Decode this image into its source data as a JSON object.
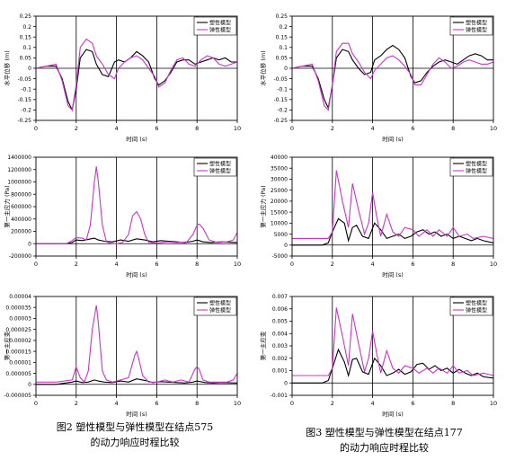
{
  "captions": [
    {
      "line1": "图2  塑性模型与弹性模型在结点575",
      "line2": "的动力响应时程比较"
    },
    {
      "line1": "图3  塑性模型与弹性模型在结点177",
      "line2": "的动力响应时程比较"
    }
  ],
  "colors": {
    "plastic": "#000000",
    "elastic": "#cc33cc"
  },
  "chart_data": [
    {
      "type": "line",
      "panel": "node-575-displacement",
      "xlabel": "时间 (s)",
      "ylabel": "水平位移 (m)",
      "xlim": [
        0,
        10
      ],
      "ylim": [
        -0.25,
        0.25
      ],
      "xticks": [
        "0",
        "2",
        "4",
        "6",
        "8",
        "10"
      ],
      "yticks": [
        "0.25",
        "0.2",
        "0.15",
        "0.1",
        "0.05",
        "0",
        "-0.05",
        "-0.1",
        "-0.15",
        "-0.2",
        "-0.25"
      ],
      "legend": "top-right",
      "grid": "vertical",
      "series": [
        {
          "name": "塑性模型",
          "color": "#000000",
          "x": [
            0,
            0.5,
            1,
            1.3,
            1.6,
            1.8,
            2,
            2.2,
            2.5,
            2.8,
            3,
            3.3,
            3.6,
            3.9,
            4.1,
            4.4,
            4.7,
            5,
            5.3,
            5.6,
            5.9,
            6.1,
            6.4,
            6.7,
            7,
            7.3,
            7.6,
            7.9,
            8.2,
            8.5,
            8.8,
            9.1,
            9.4,
            9.7,
            10
          ],
          "y": [
            0,
            0.01,
            0.01,
            -0.05,
            -0.16,
            -0.2,
            -0.1,
            0.05,
            0.09,
            0.08,
            0.02,
            -0.03,
            -0.04,
            0.03,
            0.04,
            0.03,
            0.05,
            0.08,
            0.06,
            0.03,
            -0.05,
            -0.08,
            -0.06,
            -0.02,
            0.03,
            0.04,
            0.04,
            0.02,
            0.03,
            0.04,
            0.05,
            0.04,
            0.05,
            0.03,
            0.03
          ]
        },
        {
          "name": "弹性模型",
          "color": "#cc33cc",
          "x": [
            0,
            0.5,
            1,
            1.3,
            1.6,
            1.8,
            2,
            2.2,
            2.5,
            2.8,
            3,
            3.3,
            3.6,
            3.9,
            4.1,
            4.4,
            4.7,
            5,
            5.3,
            5.6,
            5.9,
            6.1,
            6.4,
            6.7,
            7,
            7.3,
            7.6,
            7.9,
            8.2,
            8.5,
            8.8,
            9.1,
            9.4,
            9.7,
            10
          ],
          "y": [
            0,
            0.01,
            0.02,
            -0.06,
            -0.18,
            -0.2,
            -0.08,
            0.1,
            0.14,
            0.12,
            0.06,
            0.02,
            -0.03,
            -0.05,
            0,
            0.03,
            0.05,
            0.06,
            0.04,
            0,
            -0.04,
            -0.09,
            -0.07,
            -0.01,
            0.04,
            0.05,
            0.02,
            0.01,
            0.04,
            0.06,
            0.05,
            0.02,
            0.01,
            0.02,
            0.03
          ]
        }
      ]
    },
    {
      "type": "line",
      "panel": "node-177-displacement",
      "xlabel": "时间 (s)",
      "ylabel": "水平位移 (m)",
      "xlim": [
        0,
        10
      ],
      "ylim": [
        -0.25,
        0.25
      ],
      "xticks": [
        "0",
        "2",
        "4",
        "6",
        "8",
        "10"
      ],
      "yticks": [
        "0.25",
        "0.2",
        "0.15",
        "0.1",
        "0.05",
        "0",
        "-0.05",
        "-0.1",
        "-0.15",
        "-0.2",
        "-0.25"
      ],
      "legend": "top-right",
      "grid": "vertical",
      "series": [
        {
          "name": "塑性模型",
          "color": "#000000",
          "x": [
            0,
            0.5,
            1,
            1.3,
            1.6,
            1.8,
            2,
            2.2,
            2.5,
            2.8,
            3,
            3.3,
            3.6,
            3.9,
            4.1,
            4.4,
            4.7,
            5,
            5.3,
            5.6,
            5.9,
            6.1,
            6.4,
            6.7,
            7,
            7.3,
            7.6,
            7.9,
            8.2,
            8.5,
            8.8,
            9.1,
            9.4,
            9.7,
            10
          ],
          "y": [
            0,
            0.01,
            0.01,
            -0.05,
            -0.15,
            -0.19,
            -0.08,
            0.05,
            0.09,
            0.08,
            0.04,
            0,
            -0.03,
            -0.02,
            0.04,
            0.06,
            0.09,
            0.11,
            0.09,
            0.05,
            -0.04,
            -0.07,
            -0.06,
            -0.02,
            0.01,
            0.03,
            0.04,
            0.03,
            0.02,
            0.04,
            0.06,
            0.07,
            0.06,
            0.04,
            0.04
          ]
        },
        {
          "name": "弹性模型",
          "color": "#cc33cc",
          "x": [
            0,
            0.5,
            1,
            1.3,
            1.6,
            1.8,
            2,
            2.2,
            2.5,
            2.8,
            3,
            3.3,
            3.6,
            3.9,
            4.1,
            4.4,
            4.7,
            5,
            5.3,
            5.6,
            5.9,
            6.1,
            6.4,
            6.7,
            7,
            7.3,
            7.6,
            7.9,
            8.2,
            8.5,
            8.8,
            9.1,
            9.4,
            9.7,
            10
          ],
          "y": [
            0,
            0.01,
            0.02,
            -0.06,
            -0.18,
            -0.2,
            -0.08,
            0.08,
            0.12,
            0.12,
            0.07,
            0.03,
            -0.02,
            -0.05,
            -0.01,
            0.02,
            0.05,
            0.06,
            0.04,
            0.01,
            -0.03,
            -0.08,
            -0.08,
            -0.03,
            0.02,
            0.05,
            0.03,
            0,
            0.01,
            0.03,
            0.04,
            0.03,
            0.02,
            0.02,
            0.03
          ]
        }
      ]
    },
    {
      "type": "line",
      "panel": "node-575-principal-stress",
      "xlabel": "时间 (s)",
      "ylabel": "第一主应力 (Pa)",
      "xlim": [
        0,
        10
      ],
      "ylim": [
        -200000,
        1400000
      ],
      "xticks": [
        "0",
        "2",
        "4",
        "6",
        "8",
        "10"
      ],
      "yticks": [
        "1400000",
        "1200000",
        "1000000",
        "800000",
        "600000",
        "400000",
        "200000",
        "0",
        "-200000"
      ],
      "legend": "top-right",
      "grid": "vertical",
      "series": [
        {
          "name": "塑性模型",
          "color": "#000000",
          "x": [
            0,
            1.5,
            1.8,
            2,
            2.3,
            2.6,
            2.9,
            3.1,
            3.4,
            3.8,
            4.2,
            4.6,
            5,
            5.4,
            5.8,
            6.2,
            6.6,
            7,
            7.4,
            7.8,
            8,
            8.3,
            8.7,
            9.2,
            10
          ],
          "y": [
            0,
            0,
            20000,
            60000,
            50000,
            70000,
            90000,
            60000,
            40000,
            30000,
            60000,
            40000,
            80000,
            60000,
            30000,
            50000,
            40000,
            30000,
            20000,
            40000,
            60000,
            30000,
            20000,
            30000,
            20000
          ]
        },
        {
          "name": "弹性模型",
          "color": "#cc33cc",
          "x": [
            0,
            1.5,
            1.8,
            2,
            2.3,
            2.5,
            2.7,
            2.9,
            3,
            3.1,
            3.3,
            3.5,
            3.7,
            4,
            4.3,
            4.6,
            4.8,
            5,
            5.2,
            5.4,
            5.6,
            6,
            6.5,
            7,
            7.5,
            7.8,
            8,
            8.1,
            8.3,
            8.6,
            9,
            9.5,
            9.8,
            10
          ],
          "y": [
            0,
            0,
            50000,
            100000,
            90000,
            60000,
            300000,
            1000000,
            1250000,
            1000000,
            300000,
            30000,
            10000,
            0,
            20000,
            150000,
            450000,
            520000,
            400000,
            150000,
            20000,
            10000,
            30000,
            20000,
            30000,
            150000,
            300000,
            320000,
            250000,
            60000,
            20000,
            30000,
            60000,
            180000
          ]
        }
      ]
    },
    {
      "type": "line",
      "panel": "node-177-principal-stress",
      "xlabel": "时间 (s)",
      "ylabel": "第一主应力 (Pa)",
      "xlim": [
        0,
        10
      ],
      "ylim": [
        -5000,
        40000
      ],
      "xticks": [
        "0",
        "2",
        "4",
        "6",
        "8",
        "10"
      ],
      "yticks": [
        "40000",
        "35000",
        "30000",
        "25000",
        "20000",
        "15000",
        "10000",
        "5000",
        "0",
        "-5000"
      ],
      "legend": "top-right",
      "grid": "vertical",
      "series": [
        {
          "name": "塑性模型",
          "color": "#000000",
          "x": [
            0,
            1.5,
            1.8,
            2,
            2.3,
            2.6,
            2.8,
            3,
            3.2,
            3.5,
            3.8,
            4.1,
            4.4,
            4.7,
            5,
            5.3,
            5.6,
            5.9,
            6.2,
            6.5,
            6.8,
            7.1,
            7.4,
            7.7,
            8,
            8.3,
            8.6,
            8.9,
            9.2,
            9.5,
            10
          ],
          "y": [
            0,
            0,
            1000,
            6000,
            12000,
            10000,
            2000,
            8000,
            9000,
            4000,
            3000,
            10000,
            7000,
            3000,
            4000,
            5000,
            3000,
            4000,
            6000,
            7000,
            5000,
            6000,
            4000,
            5000,
            3000,
            4000,
            3000,
            2000,
            3000,
            2000,
            1000
          ]
        },
        {
          "name": "弹性模型",
          "color": "#cc33cc",
          "x": [
            0,
            1.5,
            1.8,
            2,
            2.2,
            2.5,
            2.8,
            3,
            3.3,
            3.6,
            3.8,
            4,
            4.2,
            4.4,
            4.7,
            5,
            5.3,
            5.6,
            6,
            6.3,
            6.7,
            7,
            7.3,
            7.7,
            8,
            8.3,
            8.7,
            9,
            9.5,
            10
          ],
          "y": [
            3000,
            3000,
            3000,
            6000,
            34000,
            20000,
            8000,
            28000,
            16000,
            5000,
            10000,
            24000,
            13000,
            4000,
            14000,
            6000,
            4000,
            8000,
            7000,
            4000,
            7000,
            4000,
            7000,
            4000,
            8000,
            4000,
            5000,
            3000,
            4000,
            3000
          ]
        }
      ]
    },
    {
      "type": "line",
      "panel": "node-575-principal-strain",
      "xlabel": "时间 (s)",
      "ylabel": "第一主应变",
      "xlim": [
        0,
        10
      ],
      "ylim": [
        -5e-06,
        4e-05
      ],
      "xticks": [
        "0",
        "2",
        "4",
        "6",
        "8",
        "10"
      ],
      "yticks": [
        "0.00004",
        "0.000035",
        "0.00003",
        "0.000025",
        "0.00002",
        "0.000015",
        "0.00001",
        "0.000005",
        "0",
        "-0.000005"
      ],
      "legend": "top-right",
      "grid": "vertical",
      "series": [
        {
          "name": "塑性模型",
          "color": "#000000",
          "x": [
            0,
            1,
            1.8,
            2,
            2.3,
            2.6,
            2.9,
            3.1,
            3.4,
            3.8,
            4.2,
            4.6,
            5,
            5.4,
            5.8,
            6.2,
            6.6,
            7,
            7.4,
            7.8,
            8,
            8.4,
            8.8,
            9.2,
            10
          ],
          "y": [
            0,
            0,
            1e-06,
            1.5e-06,
            8e-07,
            1e-06,
            2e-06,
            1.5e-06,
            1e-06,
            8e-07,
            1.5e-06,
            1e-06,
            2.5e-06,
            1.8e-06,
            8e-07,
            1.2e-06,
            1e-06,
            8e-07,
            6e-07,
            1e-06,
            1.5e-06,
            8e-07,
            6e-07,
            8e-07,
            6e-07
          ]
        },
        {
          "name": "弹性模型",
          "color": "#cc33cc",
          "x": [
            0,
            1,
            1.8,
            2,
            2.2,
            2.4,
            2.6,
            2.8,
            3,
            3.1,
            3.3,
            3.5,
            3.8,
            4.2,
            4.6,
            4.9,
            5,
            5.1,
            5.3,
            5.6,
            6,
            6.4,
            6.8,
            7.2,
            7.6,
            7.9,
            8,
            8.1,
            8.3,
            8.6,
            9,
            9.5,
            9.8,
            10
          ],
          "y": [
            1e-06,
            1e-06,
            2e-06,
            8e-06,
            3e-06,
            1e-06,
            6e-06,
            2.5e-05,
            3.6e-05,
            2.8e-05,
            6e-06,
            2e-06,
            1e-06,
            2e-06,
            3e-06,
            1.3e-05,
            1.5e-05,
            1.2e-05,
            4e-06,
            1e-06,
            1e-06,
            2e-06,
            1e-06,
            2e-06,
            1e-06,
            7e-06,
            8e-06,
            7e-06,
            2e-06,
            1e-06,
            1e-06,
            1e-06,
            2e-06,
            5e-06
          ]
        }
      ]
    },
    {
      "type": "line",
      "panel": "node-177-principal-strain",
      "xlabel": "时间 (s)",
      "ylabel": "第一主应变",
      "xlim": [
        0,
        10
      ],
      "ylim": [
        -0.001,
        0.007
      ],
      "xticks": [
        "0",
        "2",
        "4",
        "6",
        "8",
        "10"
      ],
      "yticks": [
        "0.007",
        "0.006",
        "0.005",
        "0.004",
        "0.003",
        "0.002",
        "0.001",
        "0",
        "-0.001"
      ],
      "legend": "top-right",
      "grid": "vertical",
      "series": [
        {
          "name": "塑性模型",
          "color": "#000000",
          "x": [
            0,
            1.5,
            1.8,
            2,
            2.3,
            2.6,
            2.8,
            3,
            3.2,
            3.5,
            3.8,
            4.1,
            4.4,
            4.7,
            5,
            5.3,
            5.6,
            5.9,
            6.2,
            6.5,
            6.8,
            7.1,
            7.4,
            7.7,
            8,
            8.3,
            8.6,
            8.9,
            9.2,
            9.5,
            10
          ],
          "y": [
            0,
            0,
            0.0002,
            0.0012,
            0.0027,
            0.0017,
            0.0006,
            0.0019,
            0.002,
            0.0009,
            0.0007,
            0.002,
            0.0014,
            0.0006,
            0.0008,
            0.0011,
            0.0007,
            0.0009,
            0.0015,
            0.0016,
            0.0011,
            0.0014,
            0.001,
            0.0012,
            0.0008,
            0.0011,
            0.0008,
            0.0006,
            0.0008,
            0.0005,
            0.0004
          ]
        },
        {
          "name": "弹性模型",
          "color": "#cc33cc",
          "x": [
            0,
            1.5,
            1.8,
            2,
            2.2,
            2.5,
            2.8,
            3,
            3.3,
            3.6,
            3.8,
            4,
            4.2,
            4.4,
            4.7,
            5,
            5.3,
            5.6,
            6,
            6.3,
            6.7,
            7,
            7.3,
            7.7,
            8,
            8.3,
            8.7,
            9,
            9.5,
            10
          ],
          "y": [
            0.0006,
            0.0006,
            0.0006,
            0.0012,
            0.0061,
            0.0038,
            0.0014,
            0.0056,
            0.0032,
            0.0009,
            0.002,
            0.0042,
            0.0024,
            0.0008,
            0.0026,
            0.0012,
            0.0008,
            0.0014,
            0.0012,
            0.0008,
            0.0012,
            0.0008,
            0.0012,
            0.0008,
            0.0014,
            0.0008,
            0.001,
            0.0006,
            0.0008,
            0.0006
          ]
        }
      ]
    }
  ]
}
